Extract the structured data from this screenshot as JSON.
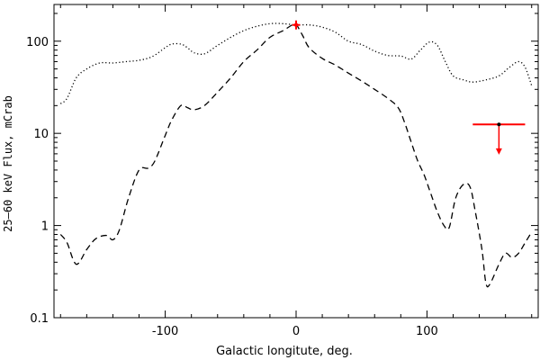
{
  "chart_data": {
    "type": "line",
    "title": "",
    "xlabel": "Galactic longitute, deg.",
    "ylabel": "25–60 keV Flux, mCrab",
    "xlim": [
      -185,
      185
    ],
    "ylim": [
      0.1,
      250
    ],
    "yscale": "log",
    "grid": false,
    "x_ticks": [
      {
        "value": -100,
        "label": "-100"
      },
      {
        "value": 0,
        "label": "0"
      },
      {
        "value": 100,
        "label": "100"
      }
    ],
    "y_ticks": [
      {
        "value": 0.1,
        "label": "0.1"
      },
      {
        "value": 1,
        "label": "1"
      },
      {
        "value": 10,
        "label": "10"
      },
      {
        "value": 100,
        "label": "100"
      }
    ],
    "series": [
      {
        "style": "dotted",
        "color": "#000000",
        "x": [
          -180,
          -175,
          -168,
          -160,
          -150,
          -140,
          -130,
          -120,
          -110,
          -100,
          -95,
          -88,
          -83,
          -78,
          -70,
          -60,
          -50,
          -40,
          -30,
          -20,
          -10,
          0,
          10,
          20,
          30,
          40,
          50,
          60,
          70,
          80,
          88,
          95,
          102,
          108,
          114,
          120,
          128,
          135,
          145,
          155,
          163,
          170,
          175,
          180
        ],
        "y": [
          21,
          24,
          40,
          50,
          58,
          58,
          60,
          62,
          68,
          85,
          93,
          93,
          85,
          75,
          73,
          90,
          110,
          130,
          145,
          155,
          155,
          150,
          150,
          142,
          125,
          100,
          92,
          78,
          70,
          69,
          64,
          80,
          98,
          90,
          60,
          42,
          38,
          36,
          38,
          42,
          52,
          60,
          52,
          33
        ]
      },
      {
        "style": "dashed",
        "color": "#000000",
        "x": [
          -180,
          -175,
          -168,
          -160,
          -153,
          -145,
          -140,
          -135,
          -128,
          -120,
          -113,
          -108,
          -100,
          -95,
          -88,
          -83,
          -78,
          -70,
          -60,
          -50,
          -40,
          -30,
          -20,
          -10,
          -3,
          0,
          5,
          10,
          20,
          30,
          40,
          50,
          60,
          70,
          78,
          83,
          88,
          93,
          98,
          103,
          108,
          113,
          117,
          122,
          128,
          133,
          137,
          142,
          145,
          148,
          155,
          160,
          165,
          170,
          175,
          180
        ],
        "y": [
          0.8,
          0.65,
          0.38,
          0.55,
          0.72,
          0.78,
          0.7,
          0.9,
          2.0,
          4.0,
          4.2,
          5.0,
          9.5,
          14,
          20,
          19,
          18,
          20,
          28,
          40,
          60,
          80,
          110,
          130,
          150,
          152,
          115,
          85,
          65,
          55,
          45,
          37,
          30,
          24,
          19,
          13,
          8,
          5.0,
          3.5,
          2.2,
          1.4,
          1.0,
          0.95,
          2.0,
          2.8,
          2.6,
          1.4,
          0.55,
          0.24,
          0.23,
          0.38,
          0.5,
          0.45,
          0.5,
          0.65,
          0.85
        ]
      }
    ],
    "markers": [
      {
        "type": "point-with-xerror",
        "color": "#ff0000",
        "x": 0,
        "y": 150,
        "xerr": 3
      },
      {
        "type": "upper-limit",
        "color": "#ff0000",
        "x": 155,
        "y": 12.5,
        "xmin": 135,
        "xmax": 175,
        "arrow_to": 6
      }
    ]
  }
}
